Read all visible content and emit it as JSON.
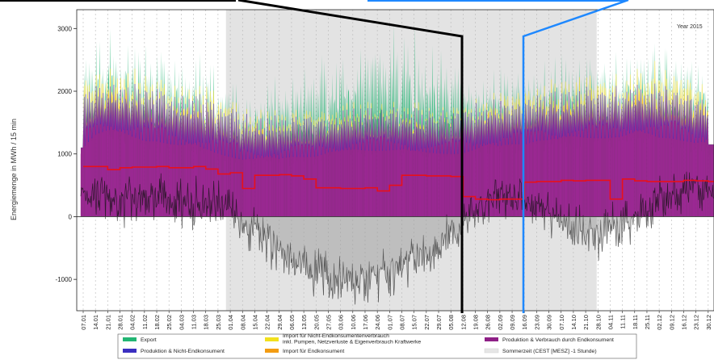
{
  "chart_data": {
    "type": "area",
    "ylabel": "Energiemenge in MWh / 15 min",
    "year_label": "Year 2015",
    "ylim": [
      -1500,
      3300
    ],
    "yticks": [
      -1000,
      0,
      1000,
      2000,
      3000
    ],
    "x_tick_labels": [
      "07.01",
      "14.01",
      "21.01",
      "28.01",
      "04.02",
      "11.02",
      "18.02",
      "25.02",
      "04.03",
      "11.03",
      "18.03",
      "25.03",
      "01.04",
      "08.04",
      "15.04",
      "22.04",
      "29.04",
      "06.05",
      "13.05",
      "20.05",
      "27.05",
      "03.06",
      "10.06",
      "17.06",
      "24.06",
      "01.07",
      "08.07",
      "15.07",
      "22.07",
      "29.07",
      "05.08",
      "12.08",
      "19.08",
      "26.08",
      "02.09",
      "09.09",
      "16.09",
      "23.09",
      "30.09",
      "07.10",
      "14.10",
      "21.10",
      "28.10",
      "04.11",
      "11.11",
      "18.11",
      "25.11",
      "02.12",
      "09.12",
      "16.12",
      "23.12",
      "30.12"
    ],
    "summer_time_band": {
      "from": "29.03",
      "to": "25.10"
    },
    "grid": true,
    "legend_position": "bottom",
    "legend": [
      {
        "label": "Export",
        "color": "#22b573"
      },
      {
        "label": "Produktion & Nicht-Endkonsument",
        "color": "#3b2fc0"
      },
      {
        "label": "Import für Nicht-Endkonsumentenverbrauch\ninkl. Pumpen, Netzverluste & Eigenverbrauch Kraftwerke",
        "color": "#f2e01d"
      },
      {
        "label": "Import für Endkonsument",
        "color": "#f39c12"
      },
      {
        "label": "Produktion & Verbrauch durch Endkonsument",
        "color": "#8e1f86"
      },
      {
        "label": "Sommerzeit (CEST [MESZ] -1 Stunde)",
        "color": "#e6e6e6"
      }
    ],
    "weekly_series": {
      "dates": [
        "07.01",
        "14.01",
        "21.01",
        "28.01",
        "04.02",
        "11.02",
        "18.02",
        "25.02",
        "04.03",
        "11.03",
        "18.03",
        "25.03",
        "01.04",
        "08.04",
        "15.04",
        "22.04",
        "29.04",
        "06.05",
        "13.05",
        "20.05",
        "27.05",
        "03.06",
        "10.06",
        "17.06",
        "24.06",
        "01.07",
        "08.07",
        "15.07",
        "22.07",
        "29.07",
        "05.08",
        "12.08",
        "19.08",
        "26.08",
        "02.09",
        "09.09",
        "16.09",
        "23.09",
        "30.09",
        "07.10",
        "14.10",
        "21.10",
        "28.10",
        "04.11",
        "11.11",
        "18.11",
        "25.11",
        "02.12",
        "09.12",
        "16.12",
        "23.12",
        "30.12"
      ],
      "endkonsument_peak": [
        1900,
        2000,
        2050,
        2050,
        2050,
        2000,
        2000,
        1950,
        1900,
        1900,
        1850,
        1800,
        1750,
        1600,
        1550,
        1550,
        1550,
        1550,
        1600,
        1600,
        1600,
        1650,
        1650,
        1700,
        1700,
        1700,
        1700,
        1650,
        1650,
        1650,
        1650,
        1700,
        1750,
        1750,
        1800,
        1800,
        1850,
        1900,
        1900,
        1900,
        1950,
        2000,
        2000,
        2000,
        2000,
        2050,
        2050,
        2050,
        2050,
        1950,
        1900,
        1900
      ],
      "import_end_peak": [
        2100,
        2300,
        2350,
        2350,
        2300,
        2250,
        2200,
        2150,
        2100,
        2100,
        2050,
        2050,
        1900,
        1750,
        1750,
        1700,
        1700,
        1700,
        1750,
        1750,
        1750,
        1800,
        1800,
        1800,
        1800,
        1800,
        1800,
        1800,
        1750,
        1750,
        1750,
        1800,
        1850,
        1900,
        1950,
        2000,
        2050,
        2100,
        2150,
        2150,
        2200,
        2250,
        2250,
        2200,
        2200,
        2350,
        2400,
        2400,
        2400,
        2300,
        2200,
        2200
      ],
      "total_peak": [
        2600,
        2850,
        2900,
        2850,
        2800,
        2700,
        2650,
        2600,
        2550,
        2500,
        2450,
        2400,
        2200,
        2000,
        2050,
        2150,
        2250,
        2350,
        2450,
        2550,
        2650,
        2750,
        2750,
        2800,
        2850,
        2900,
        2900,
        2850,
        2800,
        2750,
        2700,
        2500,
        2300,
        2250,
        2300,
        2350,
        2400,
        2450,
        2500,
        2550,
        2600,
        2600,
        2550,
        2500,
        2550,
        2700,
        2950,
        2850,
        2800,
        2700,
        2600,
        2550
      ],
      "endkonsument_base": [
        1100,
        1300,
        1350,
        1300,
        1250,
        1200,
        1200,
        1150,
        1100,
        1100,
        1050,
        1000,
        950,
        900,
        900,
        900,
        900,
        950,
        950,
        950,
        1000,
        1000,
        1050,
        1050,
        1050,
        1050,
        1050,
        1000,
        1000,
        1000,
        1000,
        1000,
        1050,
        1100,
        1100,
        1150,
        1150,
        1200,
        1200,
        1200,
        1250,
        1250,
        1250,
        1250,
        1250,
        1300,
        1300,
        1250,
        1250,
        1200,
        1150,
        1150
      ],
      "red_line": [
        800,
        800,
        750,
        780,
        790,
        790,
        800,
        780,
        780,
        800,
        760,
        680,
        700,
        450,
        660,
        660,
        670,
        650,
        600,
        460,
        460,
        450,
        450,
        460,
        410,
        500,
        660,
        660,
        650,
        650,
        640,
        320,
        280,
        270,
        280,
        280,
        550,
        560,
        560,
        580,
        570,
        580,
        580,
        280,
        600,
        570,
        560,
        560,
        560,
        580,
        570,
        560
      ],
      "net_line": [
        400,
        350,
        300,
        250,
        300,
        300,
        300,
        250,
        250,
        200,
        200,
        200,
        150,
        -150,
        -250,
        -400,
        -550,
        -700,
        -850,
        -900,
        -1000,
        -1050,
        -1050,
        -1050,
        -950,
        -900,
        -800,
        -700,
        -600,
        -450,
        -300,
        -100,
        100,
        200,
        300,
        350,
        300,
        200,
        100,
        -50,
        -200,
        -300,
        -300,
        -200,
        -100,
        0,
        100,
        250,
        350,
        400,
        450,
        400
      ]
    }
  }
}
